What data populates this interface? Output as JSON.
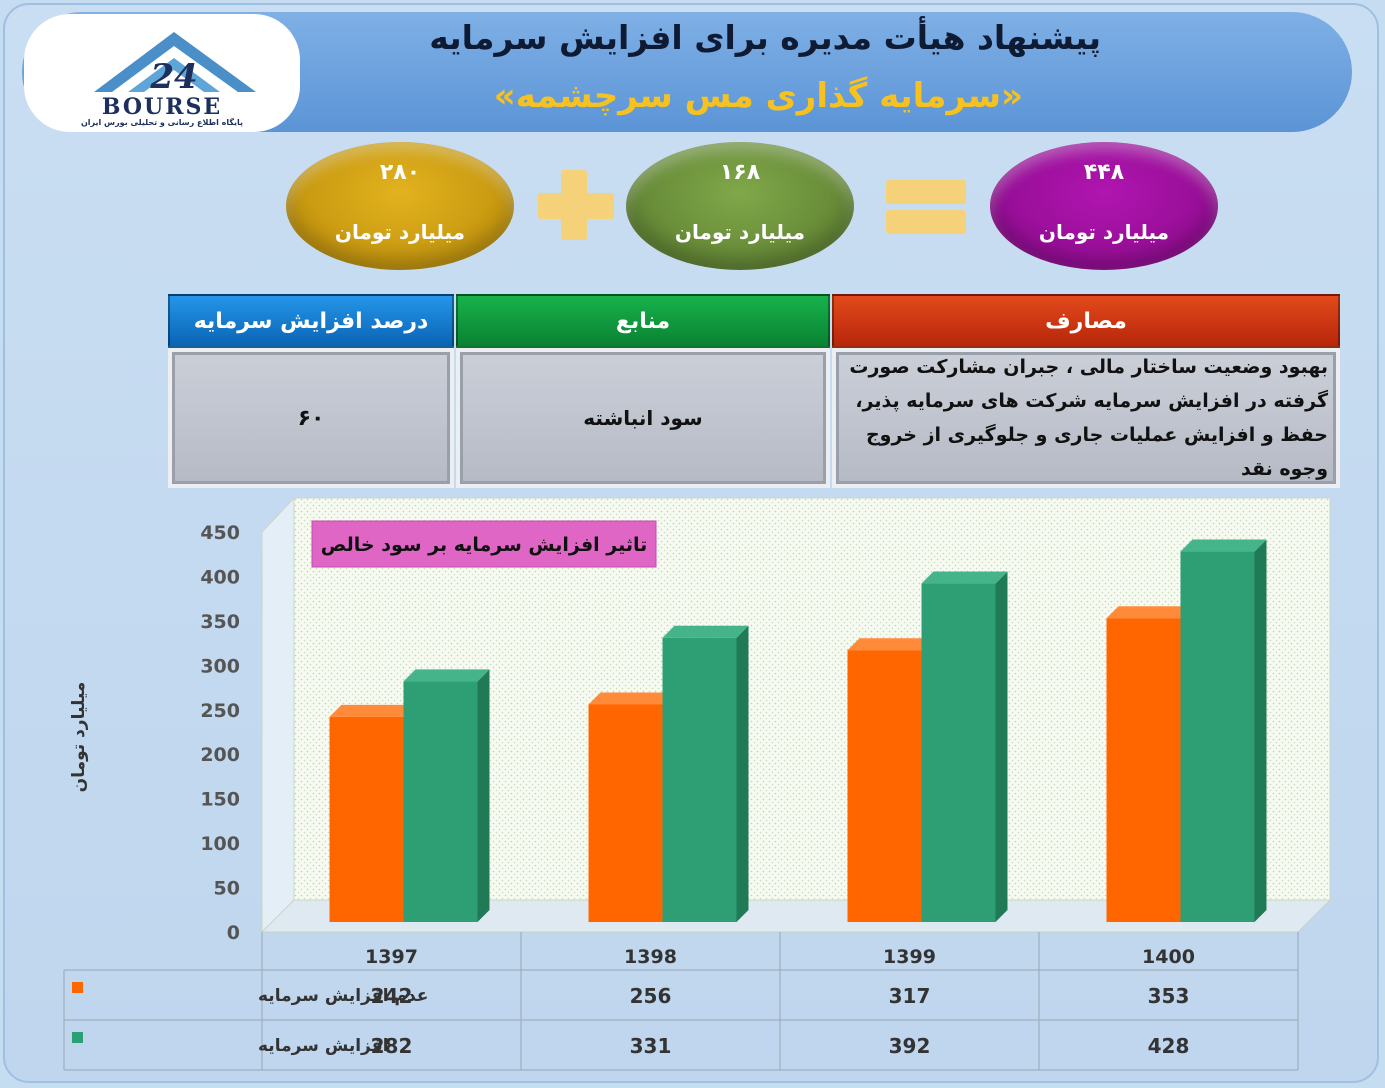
{
  "header": {
    "title": "پیشنهاد هیأت مدیره برای افزایش سرمایه",
    "subtitle": "«سرمایه گذاری مس سرچشمه»",
    "logo_word": "BOURSE",
    "logo_tagline": "پایگاه اطلاع رسانی و تحلیلی بورس ایران"
  },
  "equation": {
    "cash": {
      "value": "۲۸۰",
      "unit": "میلیارد تومان"
    },
    "retained": {
      "value": "۱۶۸",
      "unit": "میلیارد تومان"
    },
    "total": {
      "value": "۴۴۸",
      "unit": "میلیارد تومان"
    },
    "colors": {
      "cash": "#c99a10",
      "retained": "#6a8f37",
      "total": "#9c0f9c",
      "operators": "#f5d27a"
    }
  },
  "table": {
    "expense_header": "مصارف",
    "source_header": "منابع",
    "percent_header": "درصد افزایش سرمایه",
    "expense_text": "بهبود وضعیت ساختار مالی ، جبران مشارکت صورت گرفته در افزایش سرمایه شرکت های سرمایه پذیر، حفظ و افزایش عملیات جاری و جلوگیری از خروج وجوه نقد",
    "source_text": "سود انباشته",
    "percent_text": "۶۰"
  },
  "chart_data": {
    "type": "bar",
    "title": "تاثیر افزایش سرمایه بر سود خالص",
    "ylabel": "میلیارد تومان",
    "xlabel": "",
    "ylim": [
      0,
      450
    ],
    "yticks": [
      0,
      50,
      100,
      150,
      200,
      250,
      300,
      350,
      400,
      450
    ],
    "grid": false,
    "categories": [
      "1397",
      "1398",
      "1399",
      "1400"
    ],
    "series": [
      {
        "name": "عدم افزایش سرمایه",
        "values": [
          242,
          256,
          317,
          353
        ],
        "color": "#ff6600"
      },
      {
        "name": "افزایش سرمایه",
        "values": [
          282,
          331,
          392,
          428
        ],
        "color": "#2e9e74"
      }
    ],
    "data_table": true
  }
}
